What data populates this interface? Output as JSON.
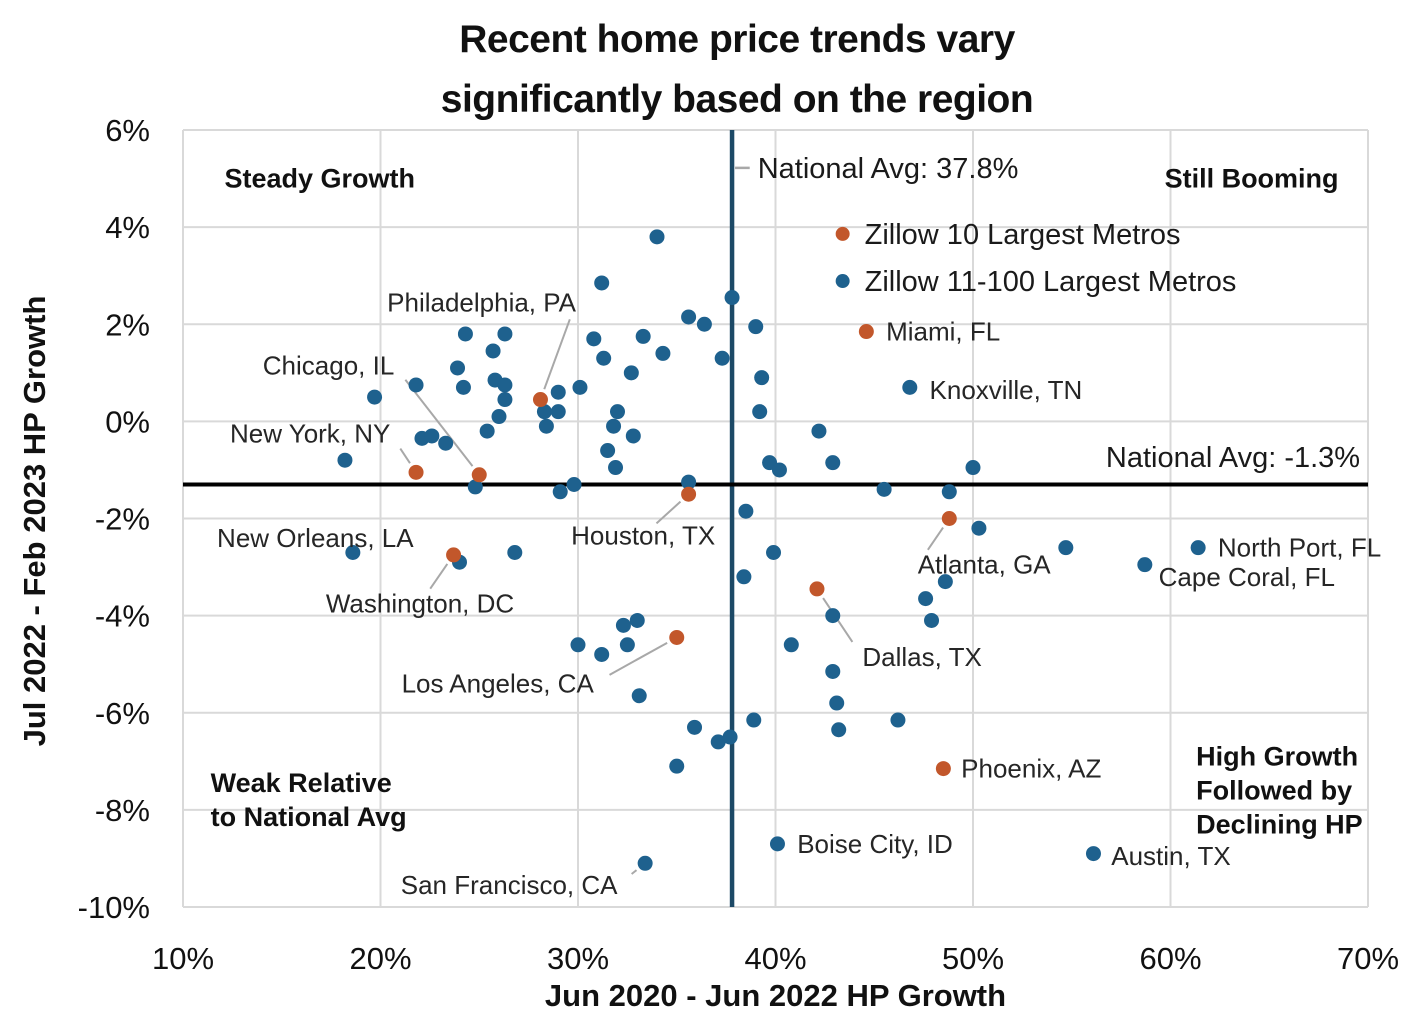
{
  "title": {
    "line1": "Recent home price trends vary",
    "line2": "significantly based on the region"
  },
  "chart_data": {
    "type": "scatter",
    "xlabel": "Jun 2020 - Jun 2022 HP Growth",
    "ylabel": "Jul 2022 - Feb 2023 HP Growth",
    "xlim": [
      10,
      70
    ],
    "ylim": [
      -10,
      6
    ],
    "grid": true,
    "grid_color": "#d9d9d9",
    "x_ticks": [
      {
        "v": 10,
        "label": "10%"
      },
      {
        "v": 20,
        "label": "20%"
      },
      {
        "v": 30,
        "label": "30%"
      },
      {
        "v": 40,
        "label": "40%"
      },
      {
        "v": 50,
        "label": "50%"
      },
      {
        "v": 60,
        "label": "60%"
      },
      {
        "v": 70,
        "label": "70%"
      }
    ],
    "y_ticks": [
      {
        "v": 6,
        "label": "6%"
      },
      {
        "v": 4,
        "label": "4%"
      },
      {
        "v": 2,
        "label": "2%"
      },
      {
        "v": 0,
        "label": "0%"
      },
      {
        "v": -2,
        "label": "-2%"
      },
      {
        "v": -4,
        "label": "-4%"
      },
      {
        "v": -6,
        "label": "-6%"
      },
      {
        "v": -8,
        "label": "-8%"
      },
      {
        "v": -10,
        "label": "-10%"
      }
    ],
    "ref_lines": {
      "vertical": {
        "value": 37.8,
        "color": "#1c4966",
        "label": "National Avg: 37.8%",
        "tx": 39.1,
        "ty": 5.22,
        "align": "start",
        "connector": true
      },
      "horizontal": {
        "value": -1.3,
        "color": "#000000",
        "label": "National Avg: -1.3%",
        "tx": 69.6,
        "ty": -0.73,
        "align": "end",
        "connector": false
      }
    },
    "legend": {
      "x": 43.4,
      "items": [
        {
          "label": "Zillow 10 Largest Metros",
          "color": "#c2572b",
          "y": 3.86
        },
        {
          "label": "Zillow 11-100 Largest Metros",
          "color": "#1e618e",
          "y": 2.89
        }
      ]
    },
    "quadrant_labels": [
      {
        "lines": [
          "Steady Growth"
        ],
        "x": 12.1,
        "y": 5.0
      },
      {
        "lines": [
          "Still Booming"
        ],
        "x": 59.7,
        "y": 5.0
      },
      {
        "lines": [
          "Weak Relative",
          "to National Avg"
        ],
        "x": 11.4,
        "y": -7.45
      },
      {
        "lines": [
          "High Growth",
          "Followed by",
          "Declining HP"
        ],
        "x": 61.3,
        "y": -6.9
      }
    ],
    "series": [
      {
        "name": "Zillow 10 Largest Metros",
        "color": "#c2572b",
        "points": [
          [
            21.8,
            -1.05
          ],
          [
            25.0,
            -1.1
          ],
          [
            28.1,
            0.45
          ],
          [
            23.7,
            -2.75
          ],
          [
            35.0,
            -4.45
          ],
          [
            35.6,
            -1.5
          ],
          [
            44.6,
            1.85
          ],
          [
            48.8,
            -2.0
          ],
          [
            42.1,
            -3.45
          ],
          [
            48.5,
            -7.15
          ]
        ]
      },
      {
        "name": "Zillow 11-100 Largest Metros",
        "color": "#1e618e",
        "points": [
          [
            18.2,
            -0.8
          ],
          [
            19.7,
            0.5
          ],
          [
            21.8,
            0.75
          ],
          [
            22.1,
            -0.35
          ],
          [
            22.6,
            -0.3
          ],
          [
            23.3,
            -0.45
          ],
          [
            23.9,
            1.1
          ],
          [
            24.2,
            0.7
          ],
          [
            24.3,
            1.8
          ],
          [
            24.8,
            -1.35
          ],
          [
            25.4,
            -0.2
          ],
          [
            25.7,
            1.45
          ],
          [
            25.8,
            0.85
          ],
          [
            26.0,
            0.1
          ],
          [
            26.3,
            1.8
          ],
          [
            26.3,
            0.75
          ],
          [
            26.3,
            0.45
          ],
          [
            28.3,
            0.2
          ],
          [
            28.4,
            -0.1
          ],
          [
            29.0,
            0.6
          ],
          [
            29.0,
            0.2
          ],
          [
            29.1,
            -1.45
          ],
          [
            29.8,
            -1.3
          ],
          [
            30.1,
            0.7
          ],
          [
            30.8,
            1.7
          ],
          [
            31.3,
            1.3
          ],
          [
            31.2,
            2.85
          ],
          [
            31.5,
            -0.6
          ],
          [
            31.8,
            -0.1
          ],
          [
            31.9,
            -0.95
          ],
          [
            32.0,
            0.2
          ],
          [
            32.7,
            1.0
          ],
          [
            32.8,
            -0.3
          ],
          [
            33.3,
            1.75
          ],
          [
            34.0,
            3.8
          ],
          [
            34.3,
            1.4
          ],
          [
            35.6,
            2.15
          ],
          [
            35.6,
            -1.25
          ],
          [
            36.4,
            2.0
          ],
          [
            37.3,
            1.3
          ],
          [
            37.8,
            2.55
          ],
          [
            39.0,
            1.95
          ],
          [
            39.3,
            0.9
          ],
          [
            39.2,
            0.2
          ],
          [
            39.7,
            -0.85
          ],
          [
            40.2,
            -1.0
          ],
          [
            42.2,
            -0.2
          ],
          [
            42.9,
            -0.85
          ],
          [
            38.5,
            -1.85
          ],
          [
            45.5,
            -1.4
          ],
          [
            48.8,
            -1.45
          ],
          [
            50.0,
            -0.95
          ],
          [
            50.3,
            -2.2
          ],
          [
            54.7,
            -2.6
          ],
          [
            39.9,
            -2.7
          ],
          [
            38.4,
            -3.2
          ],
          [
            24.0,
            -2.9
          ],
          [
            26.8,
            -2.7
          ],
          [
            48.6,
            -3.3
          ],
          [
            47.6,
            -3.65
          ],
          [
            47.9,
            -4.1
          ],
          [
            42.9,
            -4.0
          ],
          [
            40.8,
            -4.6
          ],
          [
            42.9,
            -5.15
          ],
          [
            43.1,
            -5.8
          ],
          [
            43.2,
            -6.35
          ],
          [
            46.2,
            -6.15
          ],
          [
            30.0,
            -4.6
          ],
          [
            31.2,
            -4.8
          ],
          [
            32.3,
            -4.2
          ],
          [
            33.0,
            -4.1
          ],
          [
            32.5,
            -4.6
          ],
          [
            33.1,
            -5.65
          ],
          [
            35.9,
            -6.3
          ],
          [
            37.1,
            -6.6
          ],
          [
            37.7,
            -6.5
          ],
          [
            35.0,
            -7.1
          ],
          [
            38.9,
            -6.15
          ],
          [
            18.6,
            -2.7
          ],
          [
            46.8,
            0.7
          ],
          [
            61.4,
            -2.6
          ],
          [
            58.7,
            -2.95
          ],
          [
            40.1,
            -8.7
          ],
          [
            56.1,
            -8.9
          ],
          [
            33.4,
            -9.1
          ]
        ]
      }
    ],
    "annotations": [
      {
        "text": "Philadelphia, PA",
        "x": 28.1,
        "y": 0.45,
        "tx": 29.9,
        "ty": 2.45,
        "align": "end",
        "leader": true
      },
      {
        "text": "Chicago, IL",
        "x": 25.0,
        "y": -1.1,
        "tx": 20.7,
        "ty": 1.15,
        "align": "end",
        "leader": true
      },
      {
        "text": "New York, NY",
        "x": 21.8,
        "y": -1.05,
        "tx": 20.5,
        "ty": -0.25,
        "align": "end",
        "leader": true
      },
      {
        "text": "New Orleans, LA",
        "x": 18.6,
        "y": -2.7,
        "tx": 16.7,
        "ty": -2.4,
        "align": "middle",
        "leader": false
      },
      {
        "text": "Washington, DC",
        "x": 23.7,
        "y": -2.75,
        "tx": 22.0,
        "ty": -3.75,
        "align": "middle",
        "leader": true
      },
      {
        "text": "Los Angeles, CA",
        "x": 35.0,
        "y": -4.45,
        "tx": 30.8,
        "ty": -5.4,
        "align": "end",
        "leader": true
      },
      {
        "text": "San Francisco, CA",
        "x": 33.4,
        "y": -9.1,
        "tx": 32.0,
        "ty": -9.55,
        "align": "end",
        "leader": true
      },
      {
        "text": "Houston, TX",
        "x": 35.6,
        "y": -1.5,
        "tx": 33.3,
        "ty": -2.35,
        "align": "middle",
        "leader": true
      },
      {
        "text": "Miami, FL",
        "x": 44.6,
        "y": 1.85,
        "tx": 45.6,
        "ty": 1.85,
        "align": "start",
        "leader": false
      },
      {
        "text": "Knoxville, TN",
        "x": 46.8,
        "y": 0.7,
        "tx": 47.8,
        "ty": 0.65,
        "align": "start",
        "leader": false
      },
      {
        "text": "Atlanta, GA",
        "x": 48.8,
        "y": -2.0,
        "tx": 47.2,
        "ty": -2.95,
        "align": "start",
        "leader": true
      },
      {
        "text": "North Port, FL",
        "x": 61.4,
        "y": -2.6,
        "tx": 62.4,
        "ty": -2.6,
        "align": "start",
        "leader": false
      },
      {
        "text": "Cape Coral, FL",
        "x": 58.7,
        "y": -2.95,
        "tx": 59.4,
        "ty": -3.2,
        "align": "start",
        "leader": false
      },
      {
        "text": "Dallas, TX",
        "x": 42.1,
        "y": -3.45,
        "tx": 44.4,
        "ty": -4.85,
        "align": "start",
        "leader": true
      },
      {
        "text": "Phoenix, AZ",
        "x": 48.5,
        "y": -7.15,
        "tx": 49.4,
        "ty": -7.15,
        "align": "start",
        "leader": false
      },
      {
        "text": "Boise City, ID",
        "x": 40.1,
        "y": -8.7,
        "tx": 41.1,
        "ty": -8.7,
        "align": "start",
        "leader": false
      },
      {
        "text": "Austin, TX",
        "x": 56.1,
        "y": -8.9,
        "tx": 57.0,
        "ty": -8.95,
        "align": "start",
        "leader": false
      }
    ]
  }
}
